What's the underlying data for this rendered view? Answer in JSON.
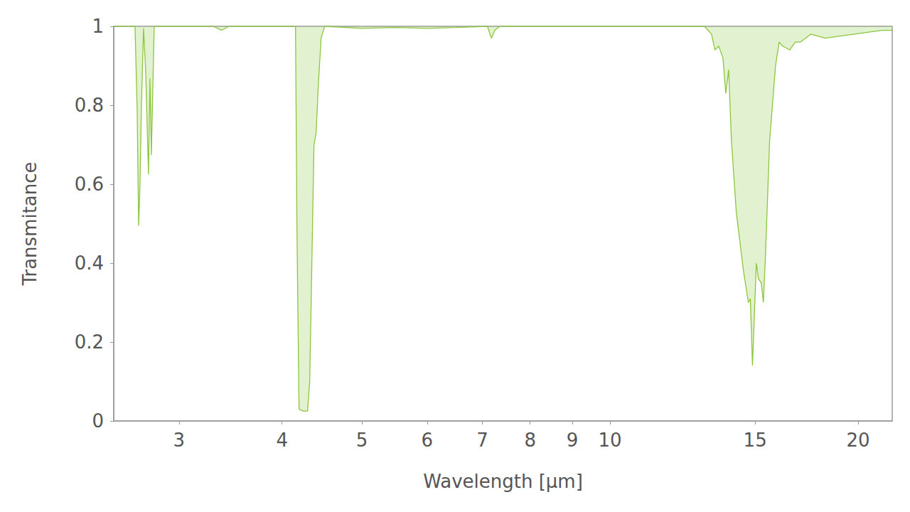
{
  "chart_data": {
    "type": "area",
    "x_label": "Wavelength [µm]",
    "y_label": "Transmitance",
    "log": "x",
    "grid": false,
    "xlim": [
      2.5,
      22
    ],
    "xticks": [
      3,
      4,
      5,
      6,
      7,
      8,
      9,
      10,
      15,
      20
    ],
    "ylim": [
      0,
      1
    ],
    "yticks": [
      0,
      0.2,
      0.4,
      0.6,
      0.8,
      1
    ],
    "color": "#8cc63e",
    "x": [
      2.5,
      2.653,
      2.669,
      2.68,
      2.69,
      2.701,
      2.717,
      2.733,
      2.755,
      2.766,
      2.777,
      2.799,
      2.827,
      3.3,
      3.38,
      3.45,
      4.1,
      4.154,
      4.17,
      4.195,
      4.246,
      4.296,
      4.322,
      4.348,
      4.374,
      4.4,
      4.427,
      4.462,
      4.506,
      5.0,
      5.5,
      6.0,
      6.5,
      7.1,
      7.18,
      7.25,
      7.35,
      9.0,
      12.0,
      13.02,
      13.28,
      13.41,
      13.55,
      13.71,
      13.82,
      13.93,
      14.04,
      14.23,
      14.52,
      14.72,
      14.8,
      14.89,
      14.95,
      15.05,
      15.14,
      15.26,
      15.35,
      15.44,
      15.62,
      15.88,
      16.04,
      16.19,
      16.52,
      16.78,
      17.02,
      17.53,
      18.24,
      19.75,
      21.38,
      22.0
    ],
    "values": [
      1,
      1,
      0.787,
      0.495,
      0.598,
      0.796,
      0.995,
      0.887,
      0.625,
      0.868,
      0.674,
      1,
      1,
      1,
      0.99,
      1,
      1,
      1,
      0.5,
      0.03,
      0.025,
      0.025,
      0.1,
      0.4,
      0.7,
      0.73,
      0.85,
      0.97,
      1,
      0.995,
      0.997,
      0.995,
      0.997,
      1,
      0.97,
      0.99,
      1,
      1,
      1,
      1,
      0.98,
      0.94,
      0.95,
      0.92,
      0.83,
      0.89,
      0.71,
      0.53,
      0.38,
      0.3,
      0.31,
      0.14,
      0.24,
      0.4,
      0.36,
      0.35,
      0.3,
      0.42,
      0.71,
      0.9,
      0.96,
      0.95,
      0.94,
      0.96,
      0.96,
      0.98,
      0.97,
      0.98,
      0.99,
      0.99
    ]
  }
}
